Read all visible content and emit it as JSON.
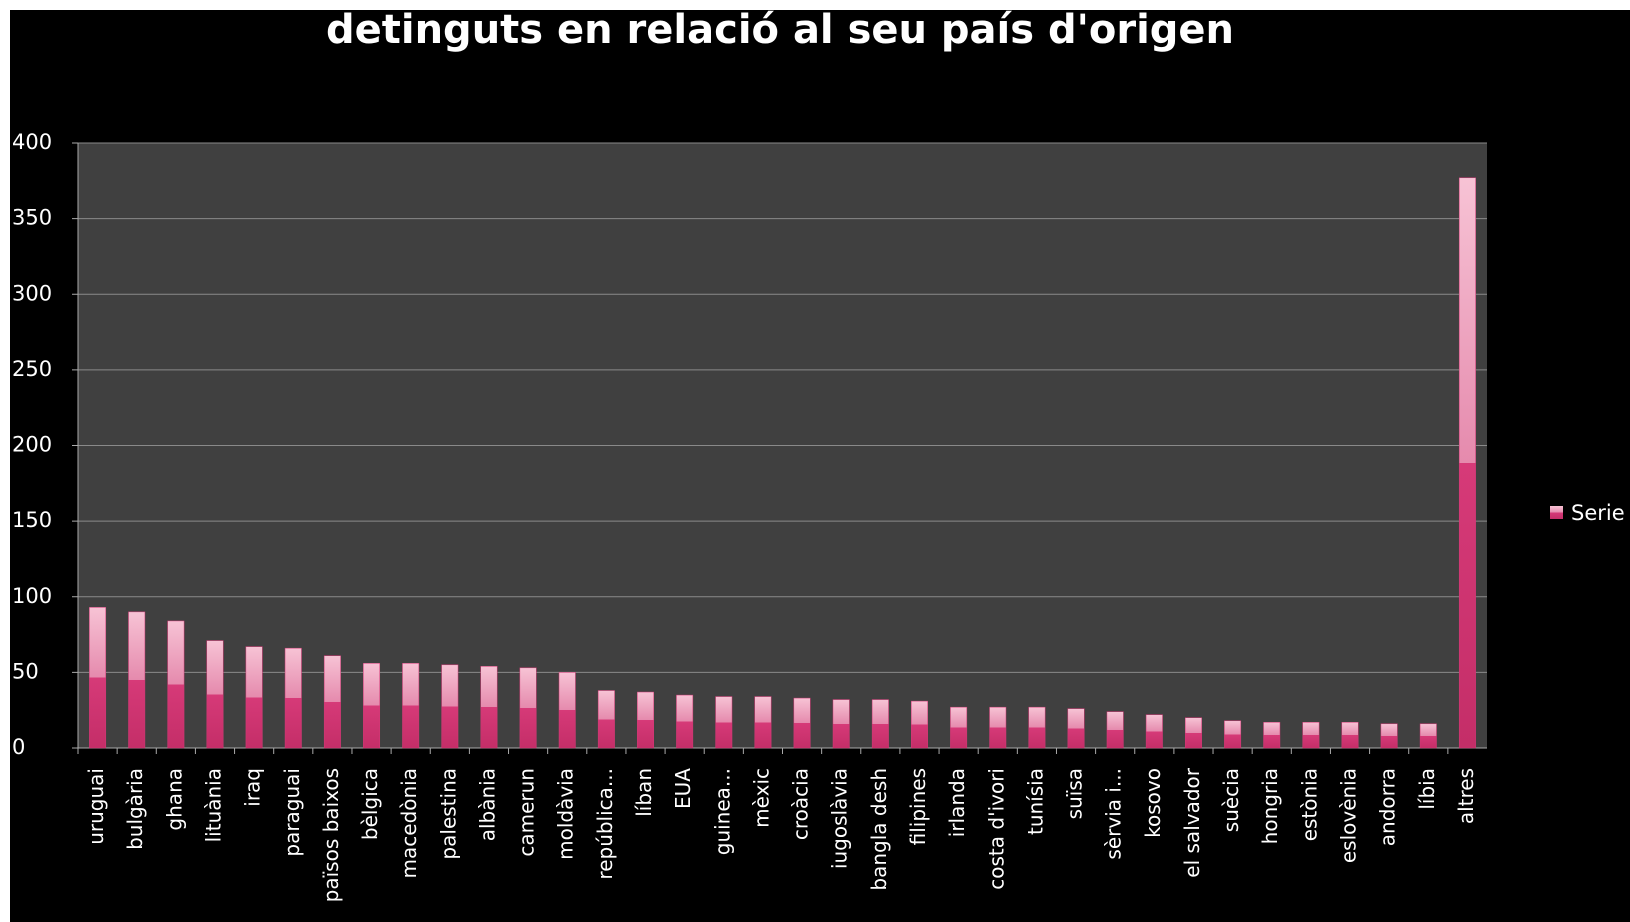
{
  "chart_data": {
    "type": "bar",
    "title": "detinguts en relació al seu país d'origen",
    "categories": [
      "uruguai",
      "bulgària",
      "ghana",
      "lituània",
      "iraq",
      "paraguai",
      "països baixos",
      "bèlgica",
      "macedònia",
      "palestina",
      "albània",
      "camerun",
      "moldàvia",
      "república...",
      "líban",
      "EUA",
      "guinea...",
      "mèxic",
      "croàcia",
      "iugoslàvia",
      "bangla desh",
      "filipines",
      "irlanda",
      "costa d'ivori",
      "tunísia",
      "suïsa",
      "sèrvia i...",
      "kosovo",
      "el salvador",
      "suècia",
      "hongria",
      "estònia",
      "eslovènia",
      "andorra",
      "líbia",
      "altres"
    ],
    "series": [
      {
        "name": "Serie",
        "color": "#d63a78",
        "values": [
          93,
          90,
          84,
          71,
          67,
          66,
          61,
          56,
          56,
          55,
          54,
          53,
          50,
          38,
          37,
          35,
          34,
          34,
          33,
          32,
          32,
          31,
          27,
          27,
          27,
          26,
          24,
          22,
          20,
          18,
          17,
          17,
          17,
          16,
          16,
          377
        ]
      }
    ],
    "ylim": [
      0,
      400
    ],
    "yticks": [
      0,
      50,
      100,
      150,
      200,
      250,
      300,
      350,
      400
    ],
    "grid": true,
    "legend": "right"
  }
}
